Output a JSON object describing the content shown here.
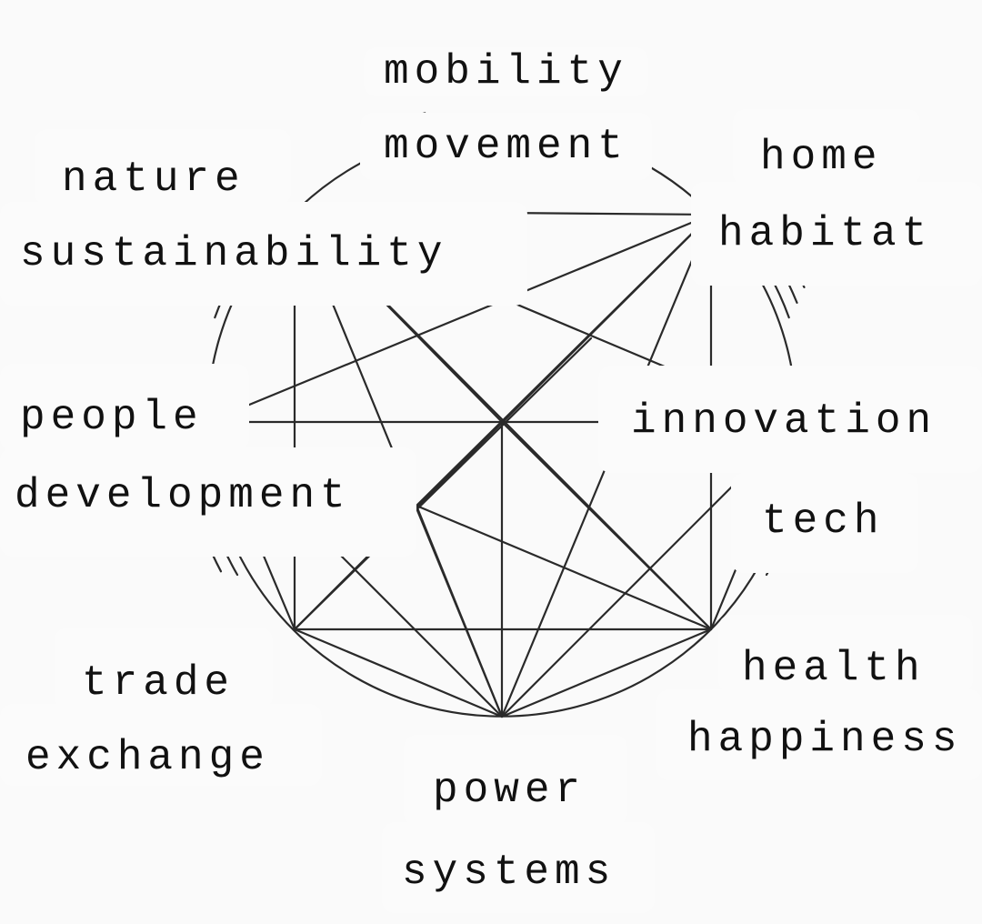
{
  "labels": {
    "mobility": "mobility",
    "movement": "movement",
    "nature": "nature",
    "sustainability": "sustainability",
    "home": "home",
    "habitat": "habitat",
    "people": "people",
    "development": "development",
    "innovation": "innovation",
    "tech": "tech",
    "trade": "trade",
    "exchange": "exchange",
    "health": "health",
    "happiness": "happiness",
    "power": "power",
    "systems": "systems"
  },
  "colors": {
    "background": "#fafafa",
    "line": "#2a2a2a",
    "label_bg": "#fbfbfb",
    "text": "#111111"
  }
}
